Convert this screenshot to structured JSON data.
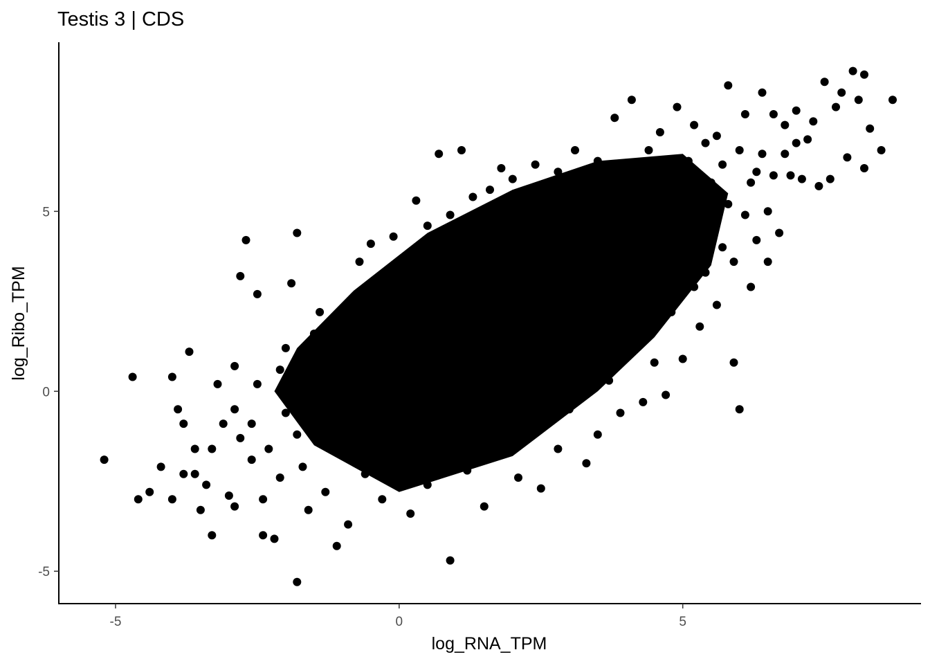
{
  "chart_data": {
    "type": "scatter",
    "title": "Testis 3 | CDS",
    "xlabel": "log_RNA_TPM",
    "ylabel": "log_Ribo_TPM",
    "xlim": [
      -6.0,
      9.2
    ],
    "ylim": [
      -5.9,
      9.7
    ],
    "x_ticks": [
      {
        "value": -5,
        "label": "-5"
      },
      {
        "value": 0,
        "label": "0"
      },
      {
        "value": 5,
        "label": "5"
      }
    ],
    "y_ticks": [
      {
        "value": -5,
        "label": "-5"
      },
      {
        "value": 0,
        "label": "0"
      },
      {
        "value": 5,
        "label": "5"
      }
    ],
    "grid": false,
    "point_color": "#000000",
    "points": [
      [
        -5.2,
        -1.9
      ],
      [
        -4.7,
        0.4
      ],
      [
        -4.6,
        -3.0
      ],
      [
        -4.4,
        -2.8
      ],
      [
        -4.2,
        -2.1
      ],
      [
        -4.0,
        -3.0
      ],
      [
        -4.0,
        0.4
      ],
      [
        -3.9,
        -0.5
      ],
      [
        -3.8,
        -0.9
      ],
      [
        -3.8,
        -2.3
      ],
      [
        -3.7,
        1.1
      ],
      [
        -3.6,
        -1.6
      ],
      [
        -3.6,
        -2.3
      ],
      [
        -3.5,
        -3.3
      ],
      [
        -3.4,
        -2.6
      ],
      [
        -3.3,
        -1.6
      ],
      [
        -3.3,
        -4.0
      ],
      [
        -3.2,
        0.2
      ],
      [
        -3.1,
        -0.9
      ],
      [
        -3.0,
        -2.9
      ],
      [
        -2.9,
        -0.5
      ],
      [
        -2.9,
        -3.2
      ],
      [
        -2.9,
        0.7
      ],
      [
        -2.8,
        3.2
      ],
      [
        -2.8,
        -1.3
      ],
      [
        -2.7,
        4.2
      ],
      [
        -2.6,
        -0.9
      ],
      [
        -2.6,
        -1.9
      ],
      [
        -2.5,
        0.2
      ],
      [
        -2.5,
        2.7
      ],
      [
        -2.4,
        -3.0
      ],
      [
        -2.4,
        -4.0
      ],
      [
        -2.3,
        -1.6
      ],
      [
        -2.2,
        -4.1
      ],
      [
        -2.1,
        0.6
      ],
      [
        -2.1,
        -2.4
      ],
      [
        -2.0,
        1.2
      ],
      [
        -2.0,
        -0.6
      ],
      [
        -1.9,
        3.0
      ],
      [
        -1.8,
        4.4
      ],
      [
        -1.8,
        -5.3
      ],
      [
        -1.8,
        -1.2
      ],
      [
        -1.7,
        0.5
      ],
      [
        -1.7,
        -2.1
      ],
      [
        -1.6,
        -3.3
      ],
      [
        -1.5,
        1.6
      ],
      [
        -1.5,
        -0.3
      ],
      [
        -1.4,
        2.2
      ],
      [
        -1.4,
        -1.4
      ],
      [
        -1.3,
        -2.8
      ],
      [
        -1.2,
        0.9
      ],
      [
        -1.1,
        -0.5
      ],
      [
        -1.1,
        -4.3
      ],
      [
        -1.0,
        1.8
      ],
      [
        -1.0,
        -1.7
      ],
      [
        -0.9,
        0.1
      ],
      [
        -0.9,
        -3.7
      ],
      [
        -0.8,
        2.6
      ],
      [
        -0.8,
        -0.9
      ],
      [
        -0.7,
        3.6
      ],
      [
        -0.7,
        1.1
      ],
      [
        -0.6,
        -2.3
      ],
      [
        -0.6,
        -0.2
      ],
      [
        -0.5,
        4.1
      ],
      [
        -0.5,
        2.0
      ],
      [
        -0.4,
        0.6
      ],
      [
        -0.4,
        -1.3
      ],
      [
        -0.3,
        3.0
      ],
      [
        -0.3,
        -3.0
      ],
      [
        -0.2,
        1.5
      ],
      [
        -0.2,
        -0.6
      ],
      [
        -0.1,
        4.3
      ],
      [
        -0.1,
        2.4
      ],
      [
        0.0,
        0.2
      ],
      [
        0.0,
        -1.9
      ],
      [
        0.1,
        3.5
      ],
      [
        0.1,
        1.0
      ],
      [
        0.2,
        -3.4
      ],
      [
        0.2,
        -0.9
      ],
      [
        0.3,
        5.3
      ],
      [
        0.3,
        2.9
      ],
      [
        0.4,
        1.6
      ],
      [
        0.4,
        -0.2
      ],
      [
        0.5,
        4.6
      ],
      [
        0.5,
        -2.6
      ],
      [
        0.6,
        2.2
      ],
      [
        0.6,
        0.6
      ],
      [
        0.7,
        6.6
      ],
      [
        0.7,
        3.8
      ],
      [
        0.8,
        -1.3
      ],
      [
        0.8,
        1.2
      ],
      [
        0.9,
        4.9
      ],
      [
        0.9,
        -4.7
      ],
      [
        1.0,
        2.7
      ],
      [
        1.0,
        0.1
      ],
      [
        1.1,
        6.7
      ],
      [
        1.1,
        3.3
      ],
      [
        1.2,
        -2.2
      ],
      [
        1.2,
        1.8
      ],
      [
        1.3,
        5.4
      ],
      [
        1.3,
        -0.7
      ],
      [
        1.4,
        4.0
      ],
      [
        1.4,
        2.4
      ],
      [
        1.5,
        0.9
      ],
      [
        1.5,
        -3.2
      ],
      [
        1.6,
        5.6
      ],
      [
        1.6,
        3.0
      ],
      [
        1.7,
        -1.5
      ],
      [
        1.7,
        1.4
      ],
      [
        1.8,
        6.2
      ],
      [
        1.8,
        4.4
      ],
      [
        1.9,
        2.0
      ],
      [
        1.9,
        -0.3
      ],
      [
        2.0,
        5.9
      ],
      [
        2.0,
        3.6
      ],
      [
        2.1,
        -2.4
      ],
      [
        2.1,
        1.1
      ],
      [
        2.2,
        5.2
      ],
      [
        2.2,
        2.8
      ],
      [
        2.3,
        -0.9
      ],
      [
        2.3,
        4.2
      ],
      [
        2.4,
        6.3
      ],
      [
        2.4,
        1.7
      ],
      [
        2.5,
        -2.7
      ],
      [
        2.5,
        3.4
      ],
      [
        2.6,
        5.7
      ],
      [
        2.6,
        0.5
      ],
      [
        2.7,
        4.8
      ],
      [
        2.7,
        2.5
      ],
      [
        2.8,
        -1.6
      ],
      [
        2.8,
        6.1
      ],
      [
        2.9,
        3.9
      ],
      [
        2.9,
        1.3
      ],
      [
        3.0,
        5.4
      ],
      [
        3.0,
        -0.5
      ],
      [
        3.1,
        6.7
      ],
      [
        3.1,
        2.9
      ],
      [
        3.2,
        4.5
      ],
      [
        3.2,
        0.9
      ],
      [
        3.3,
        -2.0
      ],
      [
        3.3,
        5.9
      ],
      [
        3.4,
        3.6
      ],
      [
        3.4,
        1.8
      ],
      [
        3.5,
        6.4
      ],
      [
        3.5,
        -1.2
      ],
      [
        3.6,
        4.9
      ],
      [
        3.6,
        2.5
      ],
      [
        3.7,
        0.3
      ],
      [
        3.7,
        5.5
      ],
      [
        3.8,
        7.6
      ],
      [
        3.8,
        3.9
      ],
      [
        3.9,
        -0.6
      ],
      [
        3.9,
        2.1
      ],
      [
        4.0,
        6.2
      ],
      [
        4.0,
        4.7
      ],
      [
        4.1,
        1.4
      ],
      [
        4.1,
        8.1
      ],
      [
        4.2,
        3.3
      ],
      [
        4.2,
        5.9
      ],
      [
        4.3,
        -0.3
      ],
      [
        4.3,
        2.6
      ],
      [
        4.4,
        6.7
      ],
      [
        4.4,
        4.2
      ],
      [
        4.5,
        0.8
      ],
      [
        4.5,
        5.4
      ],
      [
        4.6,
        3.0
      ],
      [
        4.6,
        7.2
      ],
      [
        4.7,
        -0.1
      ],
      [
        4.7,
        4.8
      ],
      [
        4.8,
        6.1
      ],
      [
        4.8,
        2.2
      ],
      [
        4.9,
        5.6
      ],
      [
        4.9,
        7.9
      ],
      [
        5.0,
        3.7
      ],
      [
        5.0,
        0.9
      ],
      [
        5.1,
        6.4
      ],
      [
        5.1,
        4.4
      ],
      [
        5.2,
        2.9
      ],
      [
        5.2,
        7.4
      ],
      [
        5.3,
        5.1
      ],
      [
        5.3,
        1.8
      ],
      [
        5.4,
        6.9
      ],
      [
        5.4,
        3.3
      ],
      [
        5.5,
        5.8
      ],
      [
        5.5,
        4.6
      ],
      [
        5.6,
        2.4
      ],
      [
        5.6,
        7.1
      ],
      [
        5.7,
        4.0
      ],
      [
        5.7,
        6.3
      ],
      [
        5.8,
        8.5
      ],
      [
        5.8,
        5.2
      ],
      [
        5.9,
        3.6
      ],
      [
        5.9,
        0.8
      ],
      [
        6.0,
        6.7
      ],
      [
        6.0,
        -0.5
      ],
      [
        6.1,
        4.9
      ],
      [
        6.1,
        7.7
      ],
      [
        6.2,
        5.8
      ],
      [
        6.2,
        2.9
      ],
      [
        6.3,
        6.1
      ],
      [
        6.3,
        4.2
      ],
      [
        6.4,
        8.3
      ],
      [
        6.4,
        6.6
      ],
      [
        6.5,
        5.0
      ],
      [
        6.5,
        3.6
      ],
      [
        6.6,
        7.7
      ],
      [
        6.6,
        6.0
      ],
      [
        6.7,
        4.4
      ],
      [
        6.8,
        7.4
      ],
      [
        6.8,
        6.6
      ],
      [
        6.9,
        6.0
      ],
      [
        7.0,
        7.8
      ],
      [
        7.0,
        6.9
      ],
      [
        7.1,
        5.9
      ],
      [
        7.2,
        7.0
      ],
      [
        7.4,
        5.7
      ],
      [
        7.3,
        7.5
      ],
      [
        7.5,
        8.6
      ],
      [
        7.6,
        5.9
      ],
      [
        7.7,
        7.9
      ],
      [
        7.8,
        8.3
      ],
      [
        7.9,
        6.5
      ],
      [
        8.0,
        8.9
      ],
      [
        8.1,
        8.1
      ],
      [
        8.2,
        6.2
      ],
      [
        8.2,
        8.8
      ],
      [
        8.3,
        7.3
      ],
      [
        8.5,
        6.7
      ],
      [
        8.7,
        8.1
      ]
    ]
  }
}
